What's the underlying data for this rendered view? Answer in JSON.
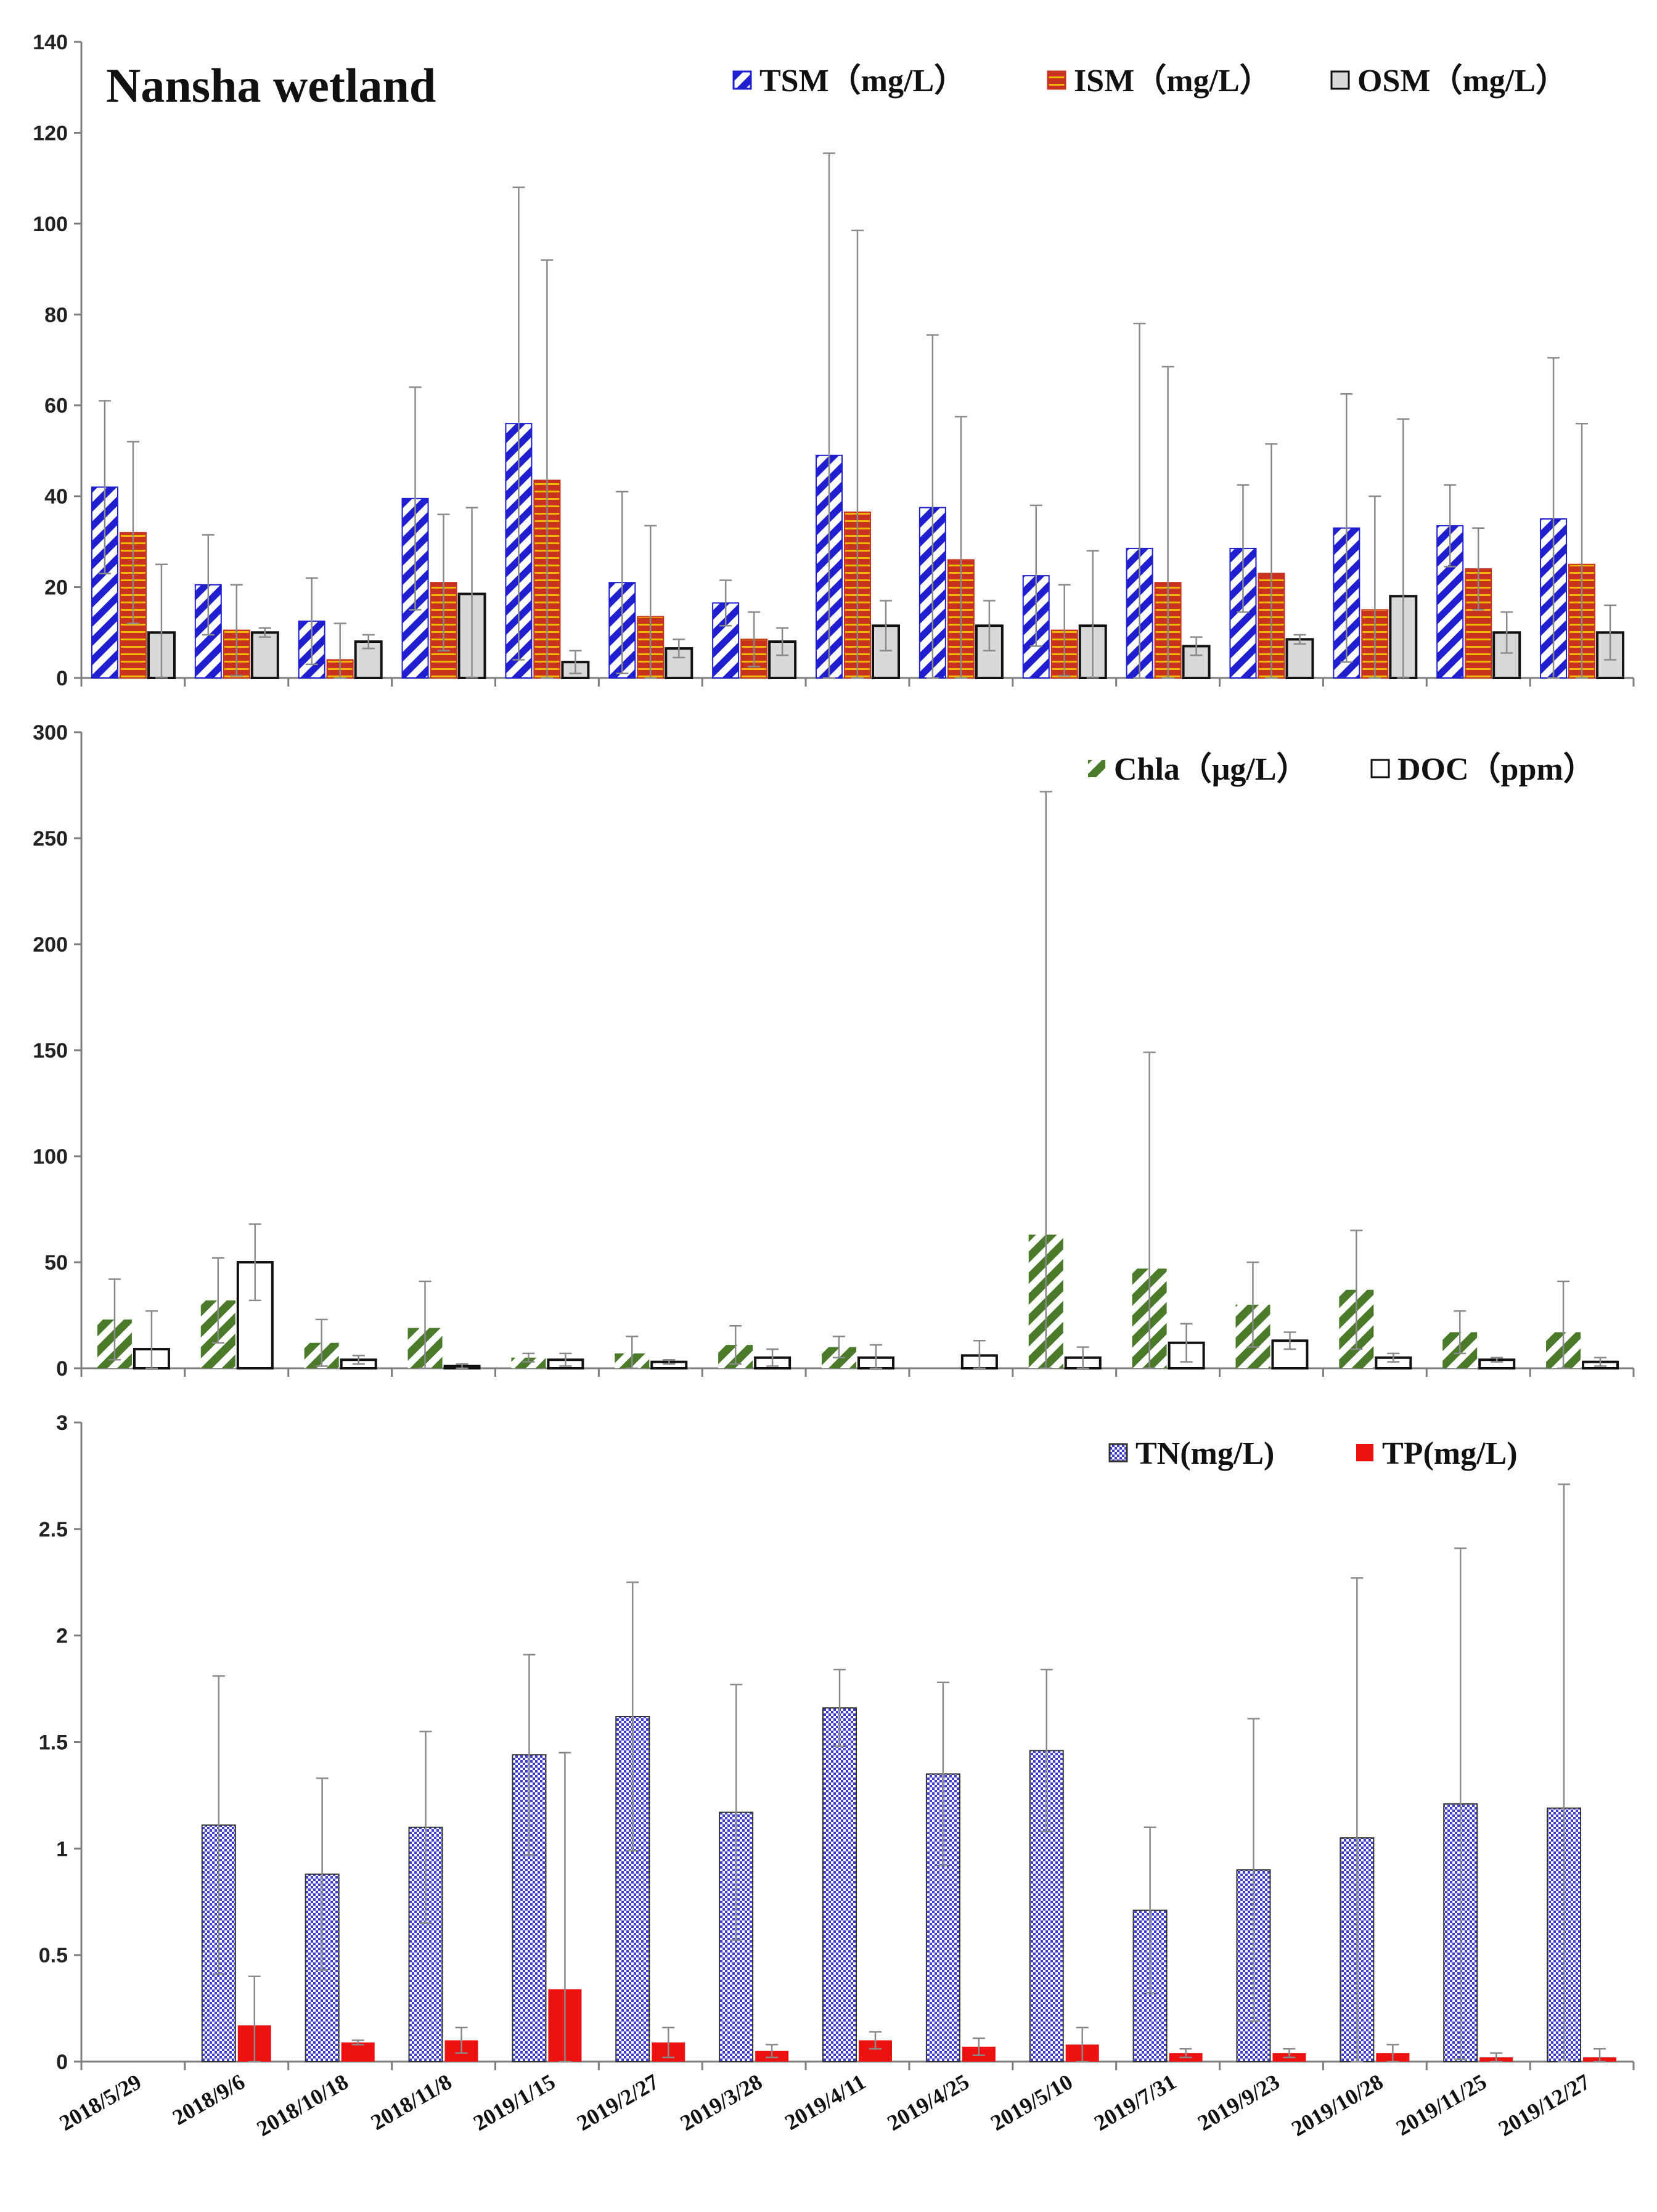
{
  "colors": {
    "tsm": "#1f1fd0",
    "ism": "#c8321e",
    "ism_stripe": "#f0b800",
    "osm": "#d8d8d8",
    "chla": "#4a7a2a",
    "doc": "#ffffff",
    "tn": "#3c3cd2",
    "tp": "#ee1111",
    "error": "#8a8a8a",
    "axis": "#7f7f7f"
  },
  "chart_data": [
    {
      "type": "bar",
      "title": "Nansha wetland",
      "categories": [
        "2018/5/29",
        "2018/9/6",
        "2018/10/18",
        "2018/11/8",
        "2019/1/15",
        "2019/2/27",
        "2019/3/28",
        "2019/4/11",
        "2019/4/25",
        "2019/5/10",
        "2019/7/31",
        "2019/9/23",
        "2019/10/28",
        "2019/11/25",
        "2019/12/27"
      ],
      "ylim": [
        0,
        140
      ],
      "yticks": [
        0,
        20,
        40,
        60,
        80,
        100,
        120,
        140
      ],
      "xlabel": "",
      "ylabel": "",
      "legend_position": "top-right",
      "series": [
        {
          "name": "TSM（mg/L）",
          "values": [
            42,
            20.5,
            12.5,
            39.5,
            56,
            21,
            16.5,
            49,
            37.5,
            22.5,
            28.5,
            28.5,
            33,
            33.5,
            35
          ],
          "error": [
            19,
            11,
            9.5,
            24.5,
            52,
            20,
            5,
            66.5,
            38,
            15.5,
            49.5,
            14,
            29.5,
            9,
            35.5
          ]
        },
        {
          "name": "ISM（mg/L）",
          "values": [
            32,
            10.5,
            4,
            21,
            43.5,
            13.5,
            8.5,
            36.5,
            26,
            10.5,
            21,
            23,
            15,
            24,
            25
          ],
          "error": [
            20,
            10,
            8,
            15,
            48.5,
            20,
            6,
            62,
            31.5,
            10,
            47.5,
            28.5,
            25,
            9,
            31
          ]
        },
        {
          "name": "OSM（mg/L）",
          "values": [
            10,
            10,
            8,
            18.5,
            3.5,
            6.5,
            8,
            11.5,
            11.5,
            11.5,
            7,
            8.5,
            18,
            10,
            10
          ],
          "error": [
            15,
            1,
            1.5,
            19,
            2.5,
            2,
            3,
            5.5,
            5.5,
            16.5,
            2,
            1,
            39,
            4.5,
            6
          ]
        }
      ]
    },
    {
      "type": "bar",
      "categories": [
        "2018/5/29",
        "2018/9/6",
        "2018/10/18",
        "2018/11/8",
        "2019/1/15",
        "2019/2/27",
        "2019/3/28",
        "2019/4/11",
        "2019/4/25",
        "2019/5/10",
        "2019/7/31",
        "2019/9/23",
        "2019/10/28",
        "2019/11/25",
        "2019/12/27"
      ],
      "ylim": [
        0,
        300
      ],
      "yticks": [
        0,
        50,
        100,
        150,
        200,
        250,
        300
      ],
      "xlabel": "",
      "ylabel": "",
      "legend_position": "top-right",
      "series": [
        {
          "name": "Chla（μg/L）",
          "values": [
            23,
            32,
            12,
            19,
            5,
            7,
            11,
            10,
            null,
            63,
            47,
            30,
            37,
            17,
            17
          ],
          "error": [
            19,
            20,
            11,
            22,
            2,
            8,
            9,
            5,
            null,
            209,
            102,
            20,
            28,
            10,
            24
          ]
        },
        {
          "name": "DOC（ppm）",
          "values": [
            9,
            50,
            4,
            1,
            4,
            3,
            5,
            5,
            6,
            5,
            12,
            13,
            5,
            4,
            3
          ],
          "error": [
            18,
            18,
            2,
            1,
            3,
            1,
            4,
            6,
            7,
            5,
            9,
            4,
            2,
            1,
            2
          ]
        }
      ]
    },
    {
      "type": "bar",
      "categories": [
        "2018/5/29",
        "2018/9/6",
        "2018/10/18",
        "2018/11/8",
        "2019/1/15",
        "2019/2/27",
        "2019/3/28",
        "2019/4/11",
        "2019/4/25",
        "2019/5/10",
        "2019/7/31",
        "2019/9/23",
        "2019/10/28",
        "2019/11/25",
        "2019/12/27"
      ],
      "ylim": [
        0,
        3
      ],
      "yticks": [
        "0",
        "0.5",
        "1",
        "1.5",
        "2",
        "2.5",
        "3"
      ],
      "xlabel": "",
      "ylabel": "",
      "legend_position": "top-right",
      "series": [
        {
          "name": "TN(mg/L)",
          "values": [
            null,
            1.11,
            0.88,
            1.1,
            1.44,
            1.62,
            1.17,
            1.66,
            1.35,
            1.46,
            0.71,
            0.9,
            1.05,
            1.21,
            1.19
          ],
          "error": [
            null,
            0.7,
            0.45,
            0.45,
            0.47,
            0.63,
            0.6,
            0.18,
            0.43,
            0.38,
            0.39,
            0.71,
            1.22,
            1.2,
            1.52
          ]
        },
        {
          "name": "TP(mg/L)",
          "values": [
            null,
            0.17,
            0.09,
            0.1,
            0.34,
            0.09,
            0.05,
            0.1,
            0.07,
            0.08,
            0.04,
            0.04,
            0.04,
            0.02,
            0.02
          ],
          "error": [
            null,
            0.23,
            0.01,
            0.06,
            1.11,
            0.07,
            0.03,
            0.04,
            0.04,
            0.08,
            0.02,
            0.02,
            0.04,
            0.02,
            0.04
          ]
        }
      ]
    }
  ]
}
